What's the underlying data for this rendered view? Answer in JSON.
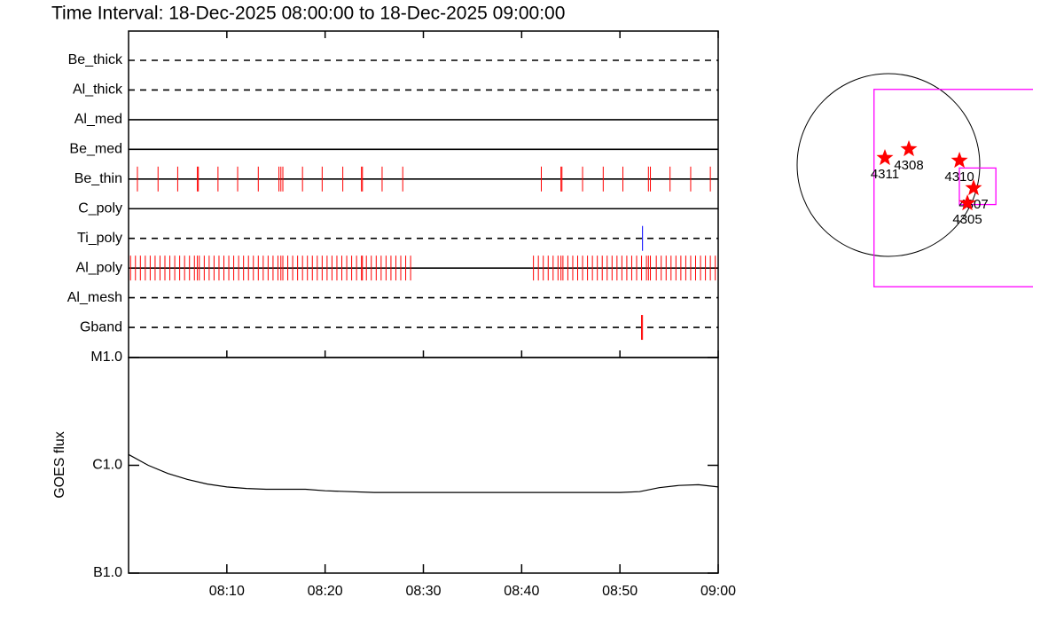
{
  "chart_data": [
    {
      "type": "timeline",
      "title": "Time Interval: 18-Dec-2025 08:00:00 to 18-Dec-2025 09:00:00",
      "categories": [
        "Be_thick",
        "Al_thick",
        "Al_med",
        "Be_med",
        "Be_thin",
        "C_poly",
        "Ti_poly",
        "Al_poly",
        "Al_mesh",
        "Gband"
      ],
      "line_styles": [
        "dashed",
        "dashed",
        "solid",
        "solid",
        "solid",
        "solid",
        "dashed",
        "solid",
        "dashed",
        "dashed"
      ],
      "event_colors": [
        "#ff0000",
        "#ff0000",
        "#ff0000",
        "#ff0000",
        "#ff0000",
        "#ff0000",
        "#0000ff",
        "#ff0000",
        "#ff0000",
        "#ff0000"
      ],
      "events": [
        [],
        [],
        [],
        [],
        [
          0.9,
          3.0,
          5.0,
          7.0,
          7.1,
          9.1,
          11.1,
          13.2,
          15.3,
          15.5,
          15.7,
          17.7,
          19.7,
          21.8,
          23.7,
          23.8,
          25.8,
          27.9,
          42.0,
          44.0,
          44.1,
          46.2,
          48.3,
          50.3,
          52.9,
          53.1,
          55.1,
          57.2,
          59.2
        ],
        [],
        [
          52.3
        ],
        [
          0.2,
          0.7,
          1.2,
          1.7,
          2.2,
          2.7,
          3.2,
          3.7,
          4.2,
          4.7,
          5.2,
          5.7,
          6.2,
          6.7,
          7.0,
          7.2,
          7.7,
          8.2,
          8.7,
          9.2,
          9.7,
          10.2,
          10.7,
          11.2,
          11.7,
          12.2,
          12.7,
          13.2,
          13.7,
          14.2,
          14.7,
          15.2,
          15.5,
          15.7,
          16.2,
          16.7,
          17.2,
          17.7,
          18.2,
          18.7,
          19.2,
          19.7,
          20.2,
          20.7,
          21.2,
          21.7,
          22.2,
          22.7,
          23.2,
          23.7,
          23.8,
          24.2,
          24.7,
          25.2,
          25.7,
          26.2,
          26.7,
          27.2,
          27.7,
          28.2,
          28.7,
          41.2,
          41.7,
          42.2,
          42.7,
          43.2,
          43.7,
          44.0,
          44.2,
          44.7,
          45.2,
          45.7,
          46.2,
          46.7,
          47.2,
          47.7,
          48.2,
          48.7,
          49.2,
          49.7,
          50.2,
          50.7,
          51.2,
          51.7,
          52.2,
          52.7,
          52.9,
          53.1,
          53.7,
          54.2,
          54.7,
          55.2,
          55.7,
          56.2,
          56.7,
          57.2,
          57.7,
          58.2,
          58.7,
          59.2,
          59.7
        ],
        [],
        [
          52.2,
          52.3
        ]
      ],
      "xlim": [
        0,
        60
      ]
    },
    {
      "type": "line",
      "ylabel": "GOES flux",
      "log_scale": true,
      "color": "#000000",
      "x": [
        0,
        2,
        4,
        6,
        8,
        10,
        12,
        14,
        16,
        18,
        20,
        25,
        30,
        35,
        40,
        45,
        50,
        52,
        54,
        56,
        58,
        60
      ],
      "values": [
        1.26e-06,
        1e-06,
        8.4e-07,
        7.4e-07,
        6.7e-07,
        6.3e-07,
        6.1e-07,
        6e-07,
        6e-07,
        6e-07,
        5.8e-07,
        5.6e-07,
        5.6e-07,
        5.6e-07,
        5.6e-07,
        5.6e-07,
        5.6e-07,
        5.7e-07,
        6.2e-07,
        6.5e-07,
        6.6e-07,
        6.3e-07
      ],
      "xlim": [
        0,
        60
      ],
      "xticks": [
        {
          "value": 10,
          "label": "08:10"
        },
        {
          "value": 20,
          "label": "08:20"
        },
        {
          "value": 30,
          "label": "08:30"
        },
        {
          "value": 40,
          "label": "08:40"
        },
        {
          "value": 50,
          "label": "08:50"
        },
        {
          "value": 60,
          "label": "09:00"
        }
      ],
      "ylim": [
        1e-07,
        1e-05
      ],
      "yticks": [
        {
          "value": 1e-05,
          "label": "M1.0"
        },
        {
          "value": 1e-06,
          "label": "C1.0"
        },
        {
          "value": 1e-07,
          "label": "B1.0"
        }
      ]
    },
    {
      "type": "map",
      "disk_radius": 975,
      "labels": [
        "4311",
        "4308",
        "4310",
        "4307",
        "4305"
      ],
      "x": [
        -38,
        218,
        758,
        909,
        843
      ],
      "y": [
        76,
        170,
        47,
        -246,
        -407
      ],
      "marker_color": "#ff0000",
      "fov_color": "#ff00ff",
      "fov": [
        {
          "x": 899,
          "y": -246,
          "width": 2106,
          "height": 2106
        },
        {
          "x": 952,
          "y": -227,
          "width": 390,
          "height": 390
        }
      ]
    }
  ]
}
